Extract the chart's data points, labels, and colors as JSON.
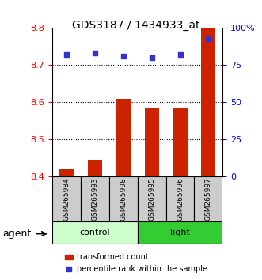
{
  "title": "GDS3187 / 1434933_at",
  "samples": [
    "GSM265984",
    "GSM265993",
    "GSM265998",
    "GSM265995",
    "GSM265996",
    "GSM265997"
  ],
  "groups": [
    "control",
    "control",
    "control",
    "light",
    "light",
    "light"
  ],
  "transformed_counts": [
    8.42,
    8.445,
    8.61,
    8.585,
    8.585,
    8.8
  ],
  "percentile_ranks": [
    82,
    83,
    81,
    80,
    82,
    93
  ],
  "ylim_left": [
    8.4,
    8.8
  ],
  "ylim_right": [
    0,
    100
  ],
  "yticks_left": [
    8.4,
    8.5,
    8.6,
    8.7,
    8.8
  ],
  "yticks_right": [
    0,
    25,
    50,
    75,
    100
  ],
  "ytick_labels_right": [
    "0",
    "25",
    "50",
    "75",
    "100%"
  ],
  "bar_color": "#cc2200",
  "dot_color": "#3333cc",
  "control_color": "#ccffcc",
  "light_color": "#33cc33",
  "agent_label": "agent",
  "legend_bar_label": "transformed count",
  "legend_dot_label": "percentile rank within the sample",
  "bar_width": 0.5,
  "grid_yticks": [
    8.5,
    8.6,
    8.7
  ]
}
